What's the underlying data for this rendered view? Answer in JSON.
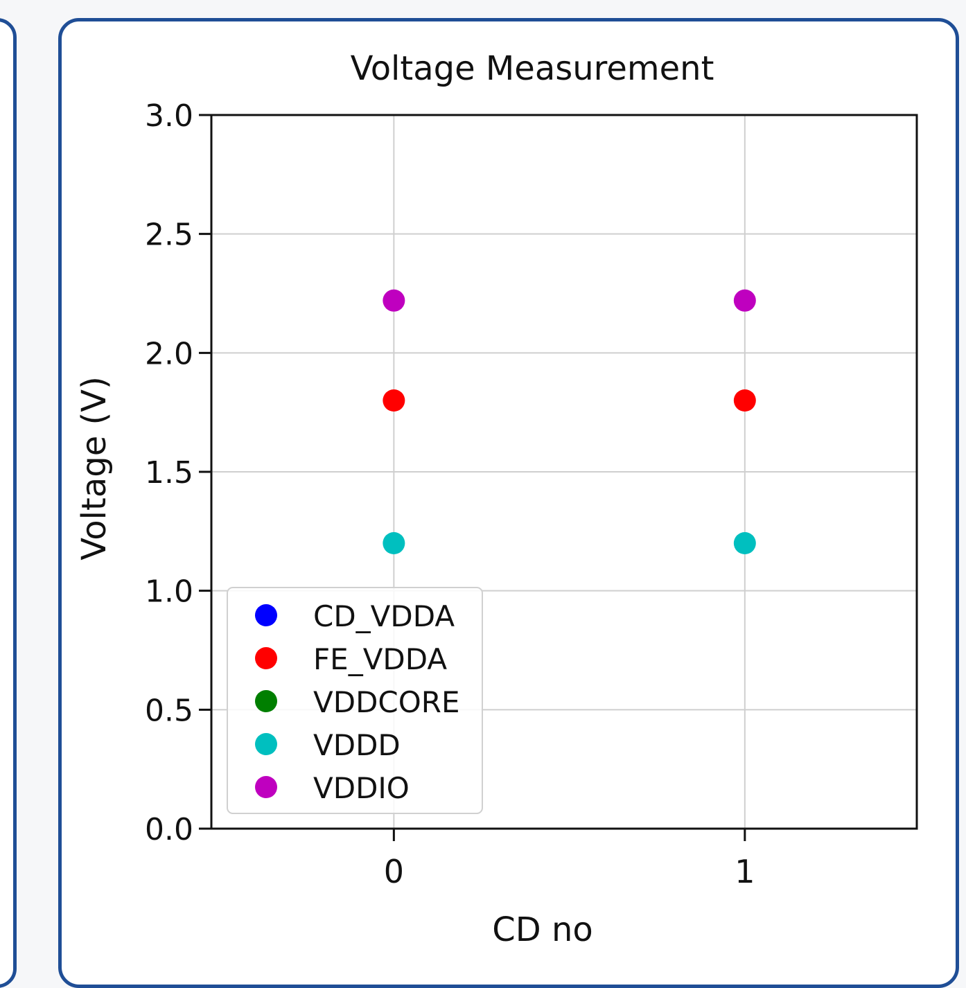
{
  "chart_data": {
    "type": "scatter",
    "title": "Voltage Measurement",
    "xlabel": "CD no",
    "ylabel": "Voltage (V)",
    "x_ticks": [
      "0",
      "1"
    ],
    "y_ticks": [
      "0.0",
      "0.5",
      "1.0",
      "1.5",
      "2.0",
      "2.5",
      "3.0"
    ],
    "xlim": [
      -0.52,
      1.49
    ],
    "ylim": [
      0.0,
      3.0
    ],
    "grid": true,
    "legend_position": "lower-left",
    "series": [
      {
        "name": "CD_VDDA",
        "color": "#0000ff",
        "x": [],
        "y": []
      },
      {
        "name": "FE_VDDA",
        "color": "#ff0000",
        "x": [
          0,
          1
        ],
        "y": [
          1.8,
          1.8
        ]
      },
      {
        "name": "VDDCORE",
        "color": "#007f00",
        "x": [],
        "y": []
      },
      {
        "name": "VDDD",
        "color": "#00bfbf",
        "x": [
          0,
          1
        ],
        "y": [
          1.2,
          1.2
        ]
      },
      {
        "name": "VDDIO",
        "color": "#bf00bf",
        "x": [
          0,
          1
        ],
        "y": [
          2.22,
          2.22
        ]
      }
    ]
  }
}
